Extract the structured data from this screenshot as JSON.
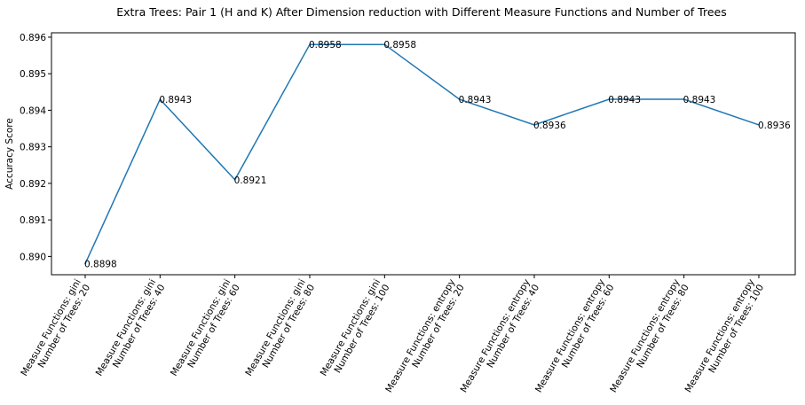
{
  "chart_data": {
    "type": "line",
    "title": "Extra Trees: Pair 1 (H and K) After Dimension reduction with Different Measure Functions and Number of Trees",
    "xlabel": "",
    "ylabel": "Accuracy Score",
    "ylim": [
      0.8895,
      0.89612
    ],
    "yticks": [
      "0.890",
      "0.891",
      "0.892",
      "0.893",
      "0.894",
      "0.895",
      "0.896"
    ],
    "grid": false,
    "categories": [
      [
        "Measure Functions: gini",
        "Number of Trees: 20"
      ],
      [
        "Measure Functions: gini",
        "Number of Trees: 40"
      ],
      [
        "Measure Functions: gini",
        "Number of Trees: 60"
      ],
      [
        "Measure Functions: gini",
        "Number of Trees: 80"
      ],
      [
        "Measure Functions: gini",
        "Number of Trees: 100"
      ],
      [
        "Measure Functions: entropy",
        "Number of Trees: 20"
      ],
      [
        "Measure Functions: entropy",
        "Number of Trees: 40"
      ],
      [
        "Measure Functions: entropy",
        "Number of Trees: 60"
      ],
      [
        "Measure Functions: entropy",
        "Number of Trees: 80"
      ],
      [
        "Measure Functions: entropy",
        "Number of Trees: 100"
      ]
    ],
    "values": [
      0.8898,
      0.8943,
      0.8921,
      0.8958,
      0.8958,
      0.8943,
      0.8936,
      0.8943,
      0.8943,
      0.8936
    ],
    "data_labels": [
      "0.8898",
      "0.8943",
      "0.8921",
      "0.8958",
      "0.8958",
      "0.8943",
      "0.8936",
      "0.8943",
      "0.8943",
      "0.8936"
    ],
    "line_color": "#1f77b4"
  }
}
